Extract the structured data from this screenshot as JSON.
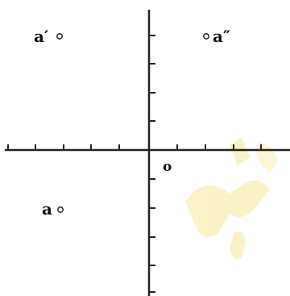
{
  "diagram": {
    "origin_label": "o",
    "points": [
      {
        "id": "a-prime",
        "label": "a′",
        "quadrant": "upper-left"
      },
      {
        "id": "a-double-prime",
        "label": "a″",
        "quadrant": "upper-right"
      },
      {
        "id": "a",
        "label": "a",
        "quadrant": "lower-left"
      }
    ]
  },
  "colors": {
    "ink": "#222222",
    "watermark": "#f7e79a",
    "background": "#ffffff"
  }
}
